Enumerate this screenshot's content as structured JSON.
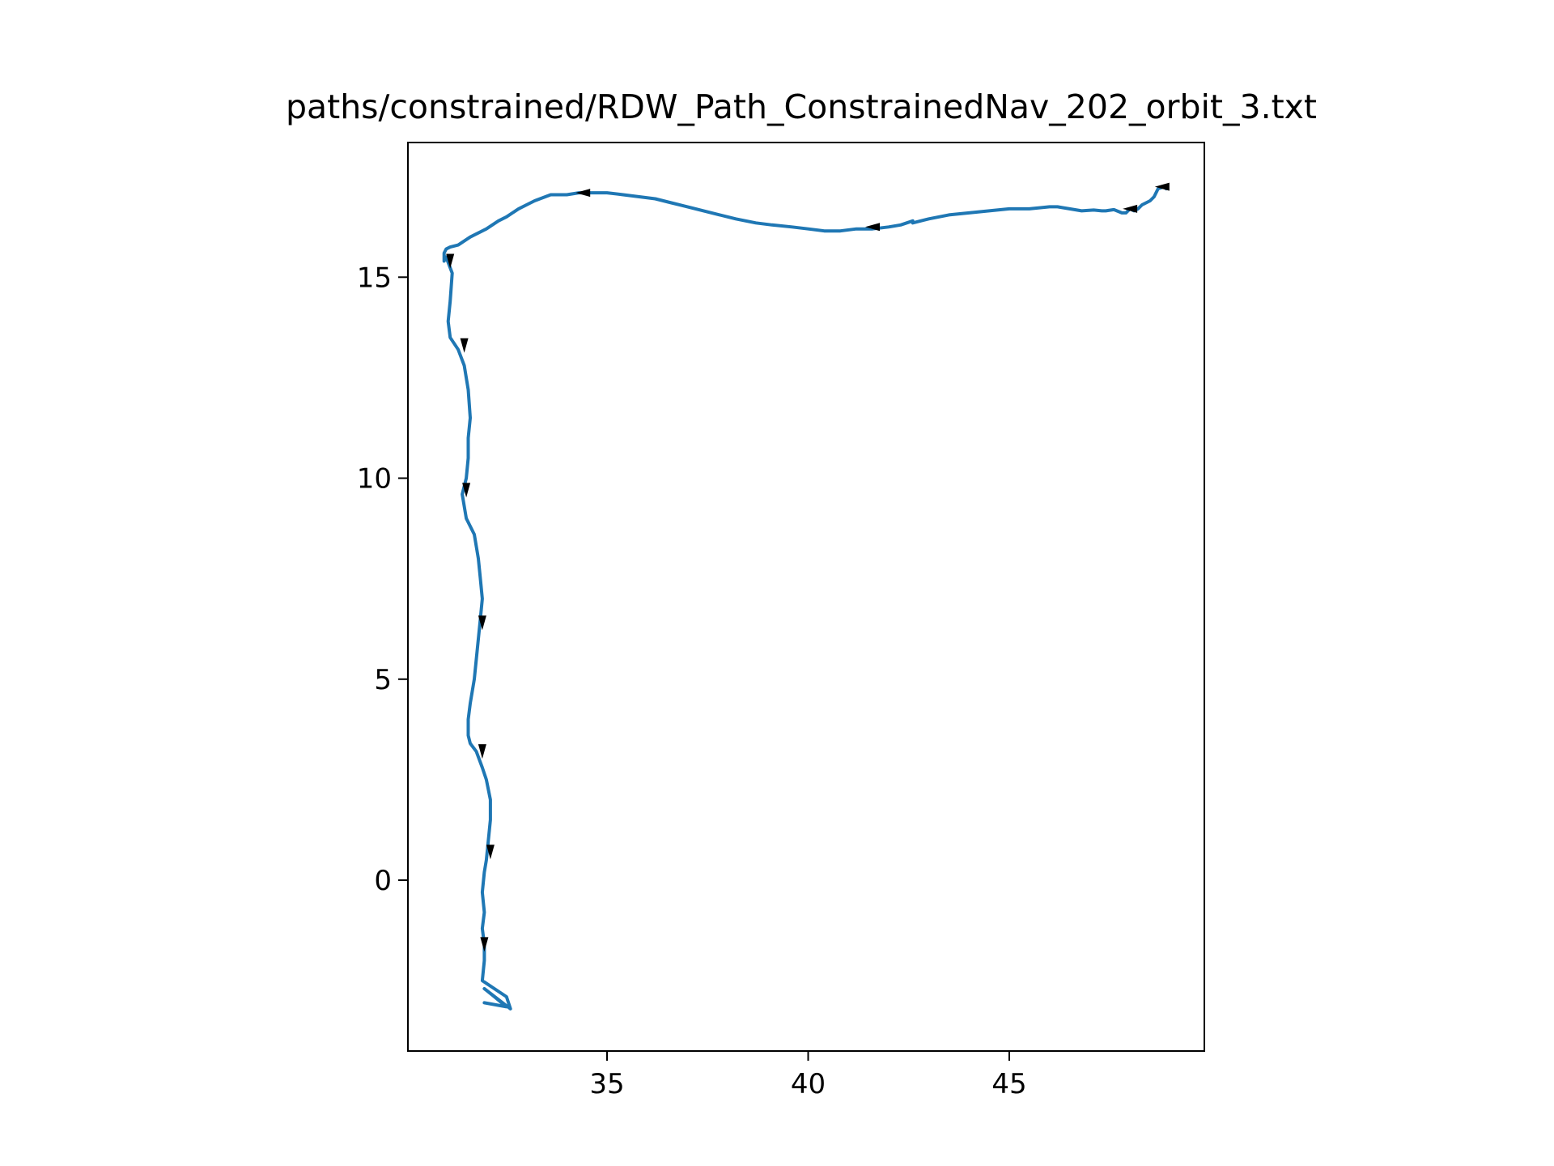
{
  "chart_data": {
    "type": "line",
    "title": "paths/constrained/RDW_Path_ConstrainedNav_202_orbit_3.txt",
    "xlabel": "",
    "ylabel": "",
    "xlim": [
      30.05,
      49.85
    ],
    "ylim": [
      -4.25,
      18.35
    ],
    "xticks": [
      {
        "value": 35,
        "label": "35"
      },
      {
        "value": 40,
        "label": "40"
      },
      {
        "value": 45,
        "label": "45"
      }
    ],
    "yticks": [
      {
        "value": 0,
        "label": "0"
      },
      {
        "value": 5,
        "label": "5"
      },
      {
        "value": 10,
        "label": "10"
      },
      {
        "value": 15,
        "label": "15"
      }
    ],
    "grid": false,
    "legend": false,
    "series": [
      {
        "color": "#1f77b4",
        "x": [
          48.9,
          48.85,
          48.7,
          48.6,
          48.5,
          48.3,
          48.2,
          48.1,
          48.0,
          47.9,
          47.8,
          47.6,
          47.4,
          47.3,
          47.1,
          46.8,
          46.5,
          46.2,
          46.0,
          45.5,
          45.0,
          44.5,
          44.0,
          43.5,
          43.0,
          42.6,
          42.6,
          42.3,
          42.0,
          41.6,
          41.2,
          40.8,
          40.4,
          40.0,
          39.6,
          39.1,
          38.7,
          38.2,
          37.8,
          37.4,
          37.0,
          36.6,
          36.2,
          35.8,
          35.4,
          35.0,
          34.6,
          34.3,
          34.0,
          33.6,
          33.2,
          32.8,
          32.5,
          32.3,
          32.0,
          31.6,
          31.3,
          31.1,
          31.0,
          30.95,
          30.95,
          31.0,
          31.15,
          31.1,
          31.05,
          31.1,
          31.3,
          31.45,
          31.55,
          31.6,
          31.55,
          31.55,
          31.5,
          31.4,
          31.5,
          31.7,
          31.8,
          31.85,
          31.9,
          31.85,
          31.75,
          31.7,
          31.6,
          31.55,
          31.55,
          31.6,
          31.75,
          31.9,
          32.0,
          32.1,
          32.1,
          32.05,
          32.0,
          31.95,
          31.9,
          31.95,
          31.9,
          31.95,
          31.95,
          31.9,
          32.5,
          32.6,
          31.95,
          32.2,
          32.5,
          31.95
        ],
        "y": [
          17.2,
          17.25,
          17.2,
          17.0,
          16.9,
          16.8,
          16.7,
          16.65,
          16.7,
          16.6,
          16.6,
          16.68,
          16.65,
          16.65,
          16.67,
          16.65,
          16.7,
          16.75,
          16.75,
          16.7,
          16.7,
          16.65,
          16.6,
          16.55,
          16.45,
          16.35,
          16.4,
          16.3,
          16.25,
          16.2,
          16.2,
          16.15,
          16.15,
          16.2,
          16.25,
          16.3,
          16.35,
          16.45,
          16.55,
          16.65,
          16.75,
          16.85,
          16.95,
          17.0,
          17.05,
          17.1,
          17.1,
          17.1,
          17.05,
          17.05,
          16.9,
          16.7,
          16.5,
          16.4,
          16.2,
          16.0,
          15.8,
          15.75,
          15.7,
          15.6,
          15.4,
          15.5,
          15.1,
          14.4,
          13.9,
          13.5,
          13.2,
          12.8,
          12.2,
          11.5,
          11.0,
          10.5,
          10.0,
          9.6,
          9.0,
          8.6,
          8.0,
          7.5,
          7.0,
          6.5,
          5.5,
          5.0,
          4.4,
          4.0,
          3.6,
          3.4,
          3.2,
          2.8,
          2.5,
          2.0,
          1.5,
          1.0,
          0.5,
          0.2,
          -0.3,
          -0.8,
          -1.2,
          -1.6,
          -2.0,
          -2.5,
          -2.9,
          -3.2,
          -2.7,
          -2.9,
          -3.15,
          -3.05
        ]
      }
    ],
    "arrows": [
      {
        "x": 48.8,
        "y": 17.25,
        "direction": "west"
      },
      {
        "x": 48.0,
        "y": 16.7,
        "direction": "west"
      },
      {
        "x": 41.6,
        "y": 16.25,
        "direction": "west"
      },
      {
        "x": 34.4,
        "y": 17.1,
        "direction": "west"
      },
      {
        "x": 31.1,
        "y": 15.4,
        "direction": "south"
      },
      {
        "x": 31.45,
        "y": 13.3,
        "direction": "south"
      },
      {
        "x": 31.5,
        "y": 9.7,
        "direction": "south"
      },
      {
        "x": 31.9,
        "y": 6.4,
        "direction": "south"
      },
      {
        "x": 31.9,
        "y": 3.2,
        "direction": "south"
      },
      {
        "x": 32.1,
        "y": 0.7,
        "direction": "south"
      },
      {
        "x": 31.95,
        "y": -1.6,
        "direction": "south"
      }
    ]
  }
}
